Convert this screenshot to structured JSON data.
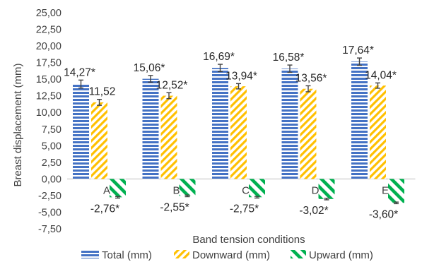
{
  "chart_data": {
    "type": "bar",
    "xlabel": "Band tension conditions",
    "ylabel": "Breast displacement (mm)",
    "ylim": [
      -7.5,
      25
    ],
    "ytick_step": 2.5,
    "yticks": [
      "25,00",
      "22,50",
      "20,00",
      "17,50",
      "15,00",
      "12,50",
      "10,00",
      "7,50",
      "5,00",
      "2,50",
      "0,00",
      "-2,50",
      "-5,00",
      "-7,50"
    ],
    "grid": false,
    "legend_position": "bottom",
    "categories": [
      "A",
      "B",
      "C",
      "D",
      "E"
    ],
    "series": [
      {
        "name": "Total (mm)",
        "values": [
          14.27,
          15.06,
          16.69,
          16.58,
          17.64
        ],
        "errors": [
          0.6,
          0.5,
          0.55,
          0.55,
          0.55
        ],
        "labels": [
          "14,27*",
          "15,06*",
          "16,69*",
          "16,58*",
          "17,64*"
        ],
        "color": "#4472c4",
        "pattern": "horizontal-stripes"
      },
      {
        "name": "Downward (mm)",
        "values": [
          11.52,
          12.52,
          13.94,
          13.56,
          14.04
        ],
        "errors": [
          0.45,
          0.45,
          0.4,
          0.45,
          0.4
        ],
        "labels": [
          "11,52",
          "12,52*",
          "13,94*",
          "13,56*",
          "14,04*"
        ],
        "color": "#ffc000",
        "pattern": "diagonal-stripes"
      },
      {
        "name": "Upward (mm)",
        "values": [
          -2.76,
          -2.55,
          -2.75,
          -3.02,
          -3.6
        ],
        "errors": [
          0.12,
          0.12,
          0.12,
          0.12,
          0.12
        ],
        "labels": [
          "-2,76*",
          "-2,55*",
          "-2,75*",
          "-3,02*",
          "-3,60*"
        ],
        "color": "#00b050",
        "pattern": "wide-diagonal-stripes"
      }
    ]
  }
}
